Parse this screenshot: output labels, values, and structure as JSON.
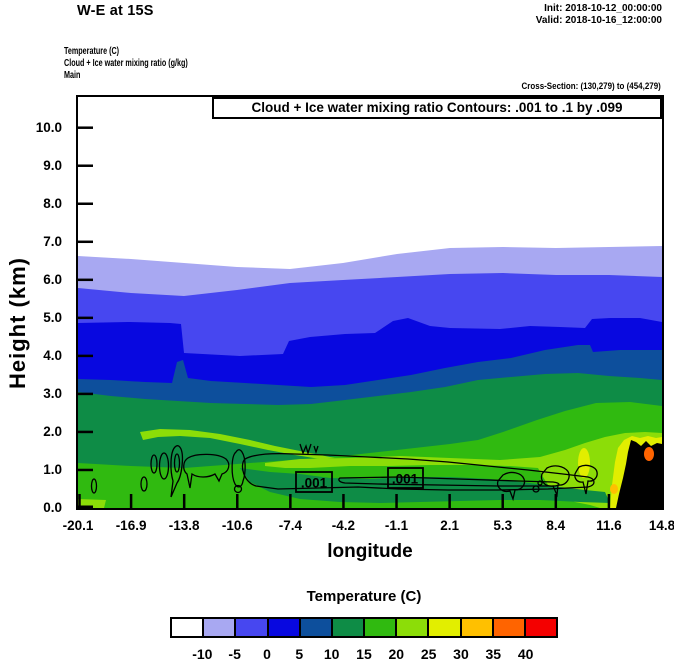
{
  "header": {
    "title": "W-E at 15S",
    "init": "Init: 2018-10-12_00:00:00",
    "valid": "Valid: 2018-10-16_12:00:00",
    "field_fill": "Temperature  (C)",
    "field_line": "Cloud + Ice water mixing ratio  (g/kg)",
    "model": "Main",
    "cross_section": "Cross-Section: (130,279) to (454,279)"
  },
  "plot": {
    "contour_note": "Cloud + Ice water mixing ratio Contours: .001 to .1 by .099",
    "xlabel": "longitude",
    "ylabel": "Height (km)",
    "x_ticks": [
      "-20.1",
      "-16.9",
      "-13.8",
      "-10.6",
      "-7.4",
      "-4.2",
      "-1.1",
      "2.1",
      "5.3",
      "8.4",
      "11.6",
      "14.8"
    ],
    "y_ticks": [
      "0.0",
      "1.0",
      "2.0",
      "3.0",
      "4.0",
      "5.0",
      "6.0",
      "7.0",
      "8.0",
      "9.0",
      "10.0"
    ],
    "contour_label": ".001",
    "terrain_color": "#000000"
  },
  "colorbar": {
    "title": "Temperature  (C)",
    "tick_labels": [
      "-10",
      "-5",
      "0",
      "5",
      "10",
      "15",
      "20",
      "25",
      "30",
      "35",
      "40"
    ],
    "colors": [
      "#ffffff",
      "#a8a8f2",
      "#4747f0",
      "#0808e0",
      "#0d4f9c",
      "#0e8c46",
      "#30ba10",
      "#8cdd08",
      "#e2ee00",
      "#ffc000",
      "#ff6400",
      "#f40000"
    ]
  },
  "chart_data": {
    "type": "filled_contour_cross_section",
    "title": "W-E at 15S",
    "fill_field": "Temperature (C)",
    "overlay_field": "Cloud + Ice water mixing ratio (g/kg)",
    "overlay_contour_levels_g_per_kg": [
      0.001,
      0.1
    ],
    "xlabel": "longitude",
    "ylabel": "Height (km)",
    "xlim": [
      -20.1,
      14.8
    ],
    "ylim": [
      0.0,
      10.8
    ],
    "fill_level_boundaries_c": [
      -10,
      -5,
      0,
      5,
      10,
      15,
      20,
      25,
      30,
      35,
      40
    ],
    "x": [
      -20.1,
      -16.9,
      -13.8,
      -10.6,
      -7.4,
      -4.2,
      -1.1,
      2.1,
      5.3,
      8.4,
      11.6,
      14.8
    ],
    "isotherm_height_km": {
      "-10C": [
        6.6,
        6.5,
        6.4,
        6.3,
        6.3,
        6.4,
        6.7,
        6.8,
        6.9,
        6.8,
        6.8,
        6.7
      ],
      "-5C": [
        5.8,
        5.7,
        5.6,
        5.7,
        5.9,
        6.0,
        6.1,
        6.2,
        6.2,
        6.1,
        6.1,
        6.0
      ],
      "0C": [
        4.9,
        4.9,
        4.1,
        4.0,
        4.4,
        4.6,
        4.9,
        4.7,
        4.7,
        4.8,
        5.0,
        4.9
      ],
      "5C": [
        3.4,
        3.4,
        3.3,
        3.3,
        3.2,
        3.2,
        3.4,
        3.6,
        3.8,
        4.1,
        4.1,
        4.2
      ],
      "10C": [
        3.1,
        2.9,
        2.9,
        2.8,
        2.8,
        2.7,
        3.0,
        3.2,
        3.4,
        3.5,
        3.5,
        3.4
      ],
      "15C": [
        1.2,
        1.1,
        1.1,
        1.2,
        1.3,
        1.4,
        1.5,
        1.7,
        2.0,
        2.4,
        2.8,
        2.7
      ],
      "20C": [
        null,
        null,
        null,
        null,
        1.3,
        1.3,
        1.4,
        1.3,
        1.3,
        1.5,
        1.9,
        2.0
      ]
    },
    "terrain_note": "Black terrain mass east of about 12E rising to roughly 1.8 km at the eastern edge",
    "cloud_note": "0.001 g/kg cloud+ice contour band spans roughly -16E to 10E between about 0.3 and 1.6 km, labeled .001 at two points",
    "legend_position": "bottom horizontal colorbar",
    "grid": false
  }
}
